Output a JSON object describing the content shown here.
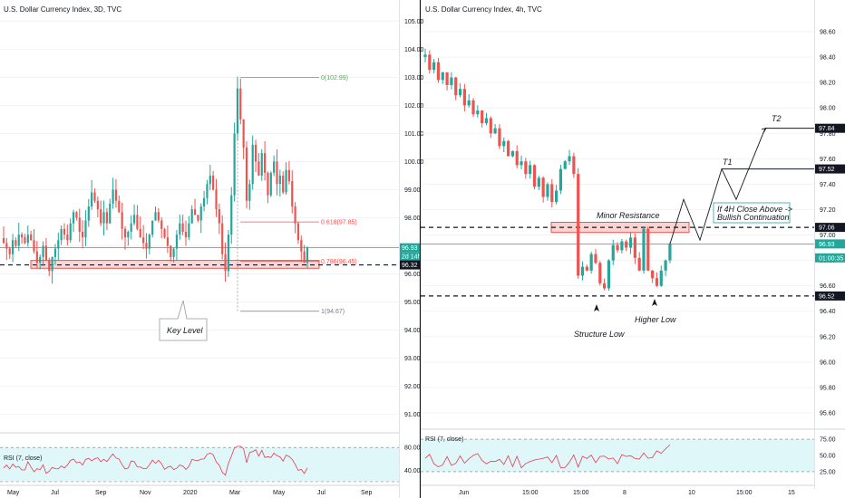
{
  "colors": {
    "up": "#26a69a",
    "down": "#ef5350",
    "fib_green": "#4caf50",
    "fib_red": "#ef5350",
    "fib_gray": "#787b86",
    "rsi_line": "#e53950",
    "rsi_bg": "#e0f7fa",
    "zone_fill": "#f7b6b6",
    "zone_stroke": "#ef5350",
    "tag_dark": "#131722",
    "tag_green": "#26a69a"
  },
  "left": {
    "title": "U.S. Dollar Currency Index, 3D, TVC",
    "price_ticks": [
      "105.00",
      "104.00",
      "103.00",
      "102.00",
      "101.00",
      "100.00",
      "99.00",
      "98.00",
      "97.00",
      "96.00",
      "95.00",
      "94.00",
      "93.00",
      "92.00",
      "91.00"
    ],
    "x_labels": [
      "May",
      "Jul",
      "Sep",
      "Nov",
      "2020",
      "Mar",
      "May",
      "Jul",
      "Sep"
    ],
    "rsi_label": "RSI (7, close)",
    "rsi_ticks": [
      "80.00",
      "40.00"
    ],
    "fib_levels": [
      {
        "label": "0(102.99)",
        "price": 102.99
      },
      {
        "label": "0.618(97.85)",
        "price": 97.85
      },
      {
        "label": "0.786(96.45)",
        "price": 96.45
      },
      {
        "label": "1(94.67)",
        "price": 94.67
      }
    ],
    "price_tag": "96.93",
    "countdown_tag": "2d 14h",
    "level_tag": "96.32",
    "key_level_label": "Key Level",
    "zone": {
      "low": 96.2,
      "high": 96.48
    },
    "dashed_level": 96.32,
    "current_price": 96.93,
    "chart_data": {
      "type": "candlestick",
      "ylim": [
        90.6,
        105.3
      ],
      "close_path": [
        97.1,
        96.9,
        96.7,
        97.2,
        97.0,
        97.4,
        97.3,
        97.1,
        97.4,
        97.2,
        96.8,
        96.4,
        96.6,
        97.0,
        96.5,
        96.1,
        96.6,
        96.9,
        97.2,
        97.6,
        97.4,
        97.2,
        97.8,
        98.2,
        98.0,
        97.5,
        97.3,
        97.9,
        98.4,
        98.9,
        98.6,
        98.3,
        97.8,
        98.2,
        97.8,
        98.5,
        99.0,
        98.6,
        98.2,
        97.6,
        97.3,
        97.5,
        97.8,
        98.1,
        97.6,
        97.3,
        97.1,
        96.9,
        97.4,
        97.9,
        98.2,
        97.9,
        97.6,
        97.3,
        97.0,
        96.6,
        96.9,
        97.4,
        97.8,
        97.5,
        97.3,
        97.8,
        98.3,
        98.1,
        97.9,
        98.4,
        98.7,
        99.2,
        99.5,
        99.0,
        98.3,
        97.8,
        96.7,
        96.1,
        97.4,
        98.8,
        101.0,
        102.6,
        101.5,
        100.5,
        98.6,
        99.2,
        100.6,
        100.0,
        99.5,
        100.3,
        99.6,
        98.8,
        99.6,
        100.0,
        99.2,
        99.5,
        98.9,
        99.7,
        99.3,
        98.4,
        97.8,
        97.2,
        96.8,
        96.4,
        96.93
      ],
      "rsi_range": [
        20,
        85
      ]
    }
  },
  "right": {
    "title": "U.S. Dollar Currency Index, 4h, TVC",
    "price_ticks": [
      "98.60",
      "98.40",
      "98.20",
      "98.00",
      "97.80",
      "97.60",
      "97.40",
      "97.20",
      "97.00",
      "96.80",
      "96.60",
      "96.40",
      "96.20",
      "96.00",
      "95.80",
      "95.60"
    ],
    "x_labels": [
      "Jun",
      "15:00",
      "8",
      "15:00",
      "10",
      "15:00",
      "15"
    ],
    "rsi_label": "RSI (7, close)",
    "rsi_ticks": [
      "75.00",
      "50.00",
      "25.00"
    ],
    "tags": [
      {
        "label": "97.84",
        "price": 97.84,
        "style": "dark"
      },
      {
        "label": "97.52",
        "price": 97.52,
        "style": "dark"
      },
      {
        "label": "97.06",
        "price": 97.06,
        "style": "dark"
      },
      {
        "label": "96.93",
        "price": 96.93,
        "style": "green"
      },
      {
        "label": "01:00:35",
        "price": 96.82,
        "style": "green"
      },
      {
        "label": "96.52",
        "price": 96.52,
        "style": "dark"
      }
    ],
    "annotations": {
      "minor_resistance": "Minor Resistance",
      "structure_low": "Structure Low",
      "higher_low": "Higher Low",
      "t1": "T1",
      "t2": "T2",
      "note_line1": "If 4H Close Above ->",
      "note_line2": "Bullish Continuation"
    },
    "resistance_level": 97.06,
    "support_level": 96.52,
    "current_price": 96.93,
    "chart_data": {
      "type": "candlestick",
      "ylim": [
        95.5,
        98.75
      ],
      "close_path": [
        98.42,
        98.3,
        98.36,
        98.22,
        98.28,
        98.18,
        98.24,
        98.1,
        98.15,
        98.02,
        98.06,
        97.95,
        97.98,
        97.88,
        97.92,
        97.8,
        97.84,
        97.7,
        97.74,
        97.62,
        97.66,
        97.55,
        97.58,
        97.48,
        97.55,
        97.38,
        97.45,
        97.3,
        97.4,
        97.26,
        97.35,
        97.52,
        97.58,
        97.62,
        97.48,
        96.68,
        96.75,
        96.72,
        96.85,
        96.78,
        96.62,
        96.58,
        96.8,
        96.92,
        96.88,
        96.95,
        96.9,
        96.98,
        96.82,
        96.72,
        97.05,
        96.72,
        96.66,
        96.6,
        96.72,
        96.8,
        96.93
      ],
      "rsi_range": [
        18,
        82
      ]
    }
  }
}
